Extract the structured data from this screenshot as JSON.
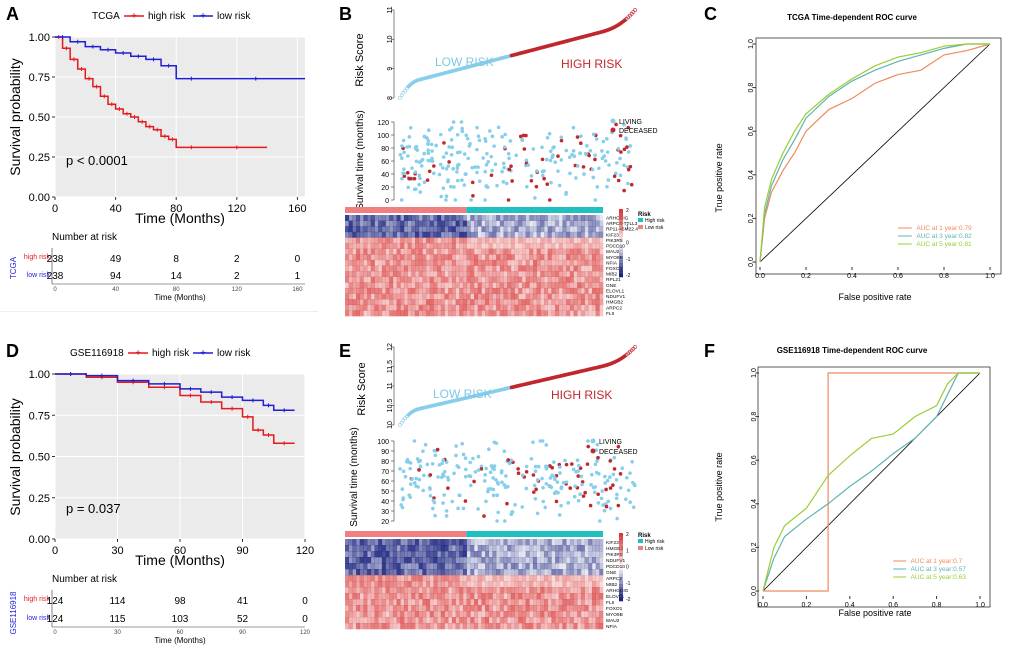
{
  "panels": {
    "A": {
      "letter": "A",
      "legend": {
        "title": "TCGA",
        "high": "high risk",
        "low": "low risk"
      },
      "ylabel": "Survival probability",
      "xlabel": "Time (Months)",
      "pvalue": "p < 0.0001",
      "risk_table": {
        "title": "Number at risk",
        "side_label": "TCGA",
        "row_labels": [
          "high risk",
          "low risk"
        ],
        "xlabel": "Time (Months)",
        "ticks": [
          "0",
          "40",
          "80",
          "120",
          "160"
        ],
        "high": [
          "238",
          "49",
          "8",
          "2",
          "0"
        ],
        "low": [
          "238",
          "94",
          "14",
          "2",
          "1"
        ]
      }
    },
    "B": {
      "letter": "B",
      "risk_ylabel": "Risk Score",
      "low_label": "LOW RISK",
      "high_label": "HIGH RISK",
      "surv_ylabel": "Survival time (months)",
      "legend": [
        "LIVING",
        "DECEASED"
      ],
      "heat_legend_title": "Risk",
      "heat_legend_items": [
        "High risk",
        "Low risk"
      ],
      "genes": [
        "ARHGDIG",
        "ARPC4-TTLL3",
        "RP11-45M22.4",
        "KIF23",
        "PIK3R5",
        "PDCD10",
        "MAU2",
        "MYO9B",
        "NFIA",
        "FOXO1",
        "MIB2",
        "RPL21",
        "GNE",
        "ELOVL1",
        "NDUFV1",
        "HMGB2",
        "ARPC2",
        "FLII"
      ],
      "scale_ticks": [
        "2",
        "1",
        "0",
        "-1",
        "-2"
      ]
    },
    "C": {
      "letter": "C",
      "title": "TCGA Time-dependent ROC curve",
      "ylabel": "True positive rate",
      "xlabel": "False positive rate",
      "auc_labels": [
        "AUC at 1 year:0.79",
        "AUC at 3 year:0.82",
        "AUC at 5 year:0.81"
      ]
    },
    "D": {
      "letter": "D",
      "legend": {
        "title": "GSE116918",
        "high": "high risk",
        "low": "low risk"
      },
      "ylabel": "Survival probability",
      "xlabel": "Time (Months)",
      "pvalue": "p = 0.037",
      "risk_table": {
        "title": "Number at risk",
        "side_label": "GSE116918",
        "row_labels": [
          "high risk",
          "low risk"
        ],
        "xlabel": "Time (Months)",
        "ticks": [
          "0",
          "30",
          "60",
          "90",
          "120"
        ],
        "high": [
          "124",
          "114",
          "98",
          "41",
          "0"
        ],
        "low": [
          "124",
          "115",
          "103",
          "52",
          "0"
        ]
      }
    },
    "E": {
      "letter": "E",
      "risk_ylabel": "Risk Score",
      "low_label": "LOW RISK",
      "high_label": "HIGH RISK",
      "surv_ylabel": "Survival time (months)",
      "legend": [
        "LIVING",
        "DECEASED"
      ],
      "heat_legend_title": "Risk",
      "heat_legend_items": [
        "High risk",
        "Low risk"
      ],
      "genes": [
        "KIF23",
        "HMGB2",
        "PIK3R5",
        "NDUFV1",
        "PDCD10",
        "GNE",
        "ARPC2",
        "MIB2",
        "ARHGDIG",
        "ELOVL1",
        "FLII",
        "FOXO1",
        "MYO9B",
        "MAU2",
        "NFIA"
      ],
      "scale_ticks": [
        "2",
        "1",
        "0",
        "-1",
        "-2"
      ]
    },
    "F": {
      "letter": "F",
      "title": "GSE116918 Time-dependent ROC curve",
      "ylabel": "True positive rate",
      "xlabel": "False positive rate",
      "auc_labels": [
        "AUC at 1 year:0.7",
        "AUC at 3 year:0.57",
        "AUC at 5 year:0.63"
      ]
    }
  },
  "colors": {
    "high": "#e41a1c",
    "low": "#1f1fd6",
    "low_risk_dot": "#87ceeb",
    "high_risk_dot": "#c0282d",
    "heat_high": "#d93a3a",
    "heat_low": "#1a237e",
    "bar_high": "#f08080",
    "bar_low": "#20c0c0",
    "roc1": "#f08a5d",
    "roc3": "#5fb3b3",
    "roc5": "#9acd32"
  },
  "chart_data": [
    {
      "panel": "A",
      "type": "line",
      "xlim": [
        0,
        165
      ],
      "ylim": [
        0,
        1
      ],
      "xticks": [
        0,
        40,
        80,
        120,
        160
      ],
      "yticks": [
        0,
        0.25,
        0.5,
        0.75,
        1.0
      ],
      "ytick_labels": [
        "0.00",
        "0.25",
        "0.50",
        "0.75",
        "1.00"
      ],
      "series": [
        {
          "name": "high risk",
          "x": [
            0,
            5,
            10,
            15,
            20,
            25,
            30,
            35,
            40,
            45,
            50,
            55,
            60,
            65,
            70,
            75,
            80,
            100,
            140
          ],
          "y": [
            1.0,
            0.93,
            0.86,
            0.8,
            0.74,
            0.69,
            0.63,
            0.58,
            0.55,
            0.52,
            0.5,
            0.47,
            0.44,
            0.42,
            0.38,
            0.36,
            0.31,
            0.31,
            0.31
          ]
        },
        {
          "name": "low risk",
          "x": [
            0,
            10,
            20,
            30,
            40,
            50,
            60,
            70,
            80,
            100,
            165
          ],
          "y": [
            1.0,
            0.97,
            0.94,
            0.92,
            0.9,
            0.88,
            0.86,
            0.82,
            0.74,
            0.74,
            0.74
          ]
        }
      ]
    },
    {
      "panel": "D",
      "type": "line",
      "xlim": [
        0,
        120
      ],
      "ylim": [
        0,
        1
      ],
      "xticks": [
        0,
        30,
        60,
        90,
        120
      ],
      "yticks": [
        0,
        0.25,
        0.5,
        0.75,
        1.0
      ],
      "ytick_labels": [
        "0.00",
        "0.25",
        "0.50",
        "0.75",
        "1.00"
      ],
      "series": [
        {
          "name": "high risk",
          "x": [
            0,
            15,
            30,
            45,
            60,
            70,
            80,
            90,
            95,
            100,
            105,
            115
          ],
          "y": [
            1.0,
            0.98,
            0.95,
            0.92,
            0.87,
            0.83,
            0.79,
            0.74,
            0.66,
            0.63,
            0.58,
            0.58
          ]
        },
        {
          "name": "low risk",
          "x": [
            0,
            15,
            30,
            45,
            60,
            70,
            80,
            90,
            100,
            105,
            115
          ],
          "y": [
            1.0,
            0.99,
            0.96,
            0.94,
            0.91,
            0.89,
            0.86,
            0.84,
            0.81,
            0.78,
            0.78
          ]
        }
      ]
    },
    {
      "panel": "C",
      "type": "line",
      "xlim": [
        0,
        1
      ],
      "ylim": [
        0,
        1
      ],
      "ticks": [
        0,
        0.2,
        0.4,
        0.6,
        0.8,
        1.0
      ],
      "series": [
        {
          "name": "AUC at 1 year:0.79",
          "x": [
            0,
            0.02,
            0.05,
            0.1,
            0.15,
            0.2,
            0.3,
            0.4,
            0.5,
            0.6,
            0.7,
            0.8,
            0.9,
            1.0
          ],
          "y": [
            0,
            0.2,
            0.32,
            0.42,
            0.5,
            0.6,
            0.7,
            0.75,
            0.82,
            0.86,
            0.88,
            0.95,
            0.97,
            1.0
          ]
        },
        {
          "name": "AUC at 3 year:0.82",
          "x": [
            0,
            0.02,
            0.05,
            0.1,
            0.15,
            0.2,
            0.3,
            0.4,
            0.5,
            0.6,
            0.7,
            0.8,
            0.9,
            1.0
          ],
          "y": [
            0,
            0.22,
            0.35,
            0.47,
            0.56,
            0.66,
            0.76,
            0.83,
            0.88,
            0.92,
            0.95,
            0.98,
            1.0,
            1.0
          ]
        },
        {
          "name": "AUC at 5 year:0.81",
          "x": [
            0,
            0.02,
            0.05,
            0.1,
            0.15,
            0.2,
            0.3,
            0.4,
            0.5,
            0.6,
            0.7,
            0.8,
            0.9,
            1.0
          ],
          "y": [
            0,
            0.25,
            0.38,
            0.5,
            0.6,
            0.68,
            0.77,
            0.84,
            0.9,
            0.94,
            0.96,
            0.99,
            1.0,
            1.0
          ]
        }
      ]
    },
    {
      "panel": "F",
      "type": "line",
      "xlim": [
        0,
        1
      ],
      "ylim": [
        0,
        1
      ],
      "ticks": [
        0,
        0.2,
        0.4,
        0.6,
        0.8,
        1.0
      ],
      "series": [
        {
          "name": "AUC at 1 year:0.7",
          "x": [
            0,
            0.3,
            0.3,
            1.0
          ],
          "y": [
            0,
            0,
            1.0,
            1.0
          ]
        },
        {
          "name": "AUC at 3 year:0.57",
          "x": [
            0,
            0.05,
            0.1,
            0.2,
            0.3,
            0.4,
            0.5,
            0.6,
            0.7,
            0.8,
            0.85,
            0.9,
            1.0
          ],
          "y": [
            0,
            0.15,
            0.25,
            0.33,
            0.4,
            0.48,
            0.55,
            0.63,
            0.7,
            0.8,
            0.9,
            1.0,
            1.0
          ]
        },
        {
          "name": "AUC at 5 year:0.63",
          "x": [
            0,
            0.05,
            0.1,
            0.2,
            0.3,
            0.4,
            0.5,
            0.6,
            0.7,
            0.8,
            0.85,
            0.9,
            1.0
          ],
          "y": [
            0,
            0.2,
            0.3,
            0.38,
            0.53,
            0.62,
            0.7,
            0.72,
            0.8,
            0.85,
            0.95,
            1.0,
            1.0
          ]
        }
      ]
    },
    {
      "panel": "B",
      "type": "scatter",
      "risk_range": [
        8,
        11
      ],
      "risk_ticks": [
        8,
        9,
        10,
        11
      ],
      "surv_ticks": [
        0,
        20,
        40,
        60,
        80,
        100,
        120
      ],
      "split_fraction": 0.47
    },
    {
      "panel": "E",
      "type": "scatter",
      "risk_range": [
        10,
        12
      ],
      "risk_ticks": [
        10.0,
        10.5,
        11.0,
        11.5,
        12.0
      ],
      "surv_ticks": [
        20,
        30,
        40,
        50,
        60,
        70,
        80,
        90,
        100
      ],
      "split_fraction": 0.47
    }
  ]
}
